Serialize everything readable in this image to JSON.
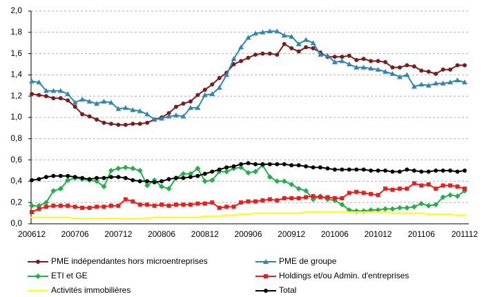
{
  "chart_data": {
    "type": "line",
    "categories": [
      "200612",
      null,
      null,
      null,
      null,
      null,
      "200706",
      null,
      null,
      null,
      null,
      null,
      "200712",
      null,
      null,
      null,
      null,
      null,
      "200806",
      null,
      null,
      null,
      null,
      null,
      "200812",
      null,
      null,
      null,
      null,
      null,
      "200906",
      null,
      null,
      null,
      null,
      null,
      "200912",
      null,
      null,
      null,
      null,
      null,
      "201006",
      null,
      null,
      null,
      null,
      null,
      "201012",
      null,
      null,
      null,
      null,
      null,
      "201106",
      null,
      null,
      null,
      null,
      null,
      "201112"
    ],
    "ylim": [
      0,
      2
    ],
    "yticks": [
      {
        "value": 0,
        "label": "0,0"
      },
      {
        "value": 0.2,
        "label": "0,2"
      },
      {
        "value": 0.4,
        "label": "0,4"
      },
      {
        "value": 0.6,
        "label": "0,6"
      },
      {
        "value": 0.8,
        "label": "0,8"
      },
      {
        "value": 1.0,
        "label": "1,0"
      },
      {
        "value": 1.2,
        "label": "1,2"
      },
      {
        "value": 1.4,
        "label": "1,4"
      },
      {
        "value": 1.6,
        "label": "1,6"
      },
      {
        "value": 1.8,
        "label": "1,8"
      },
      {
        "value": 2.0,
        "label": "2,0"
      }
    ],
    "grid": true,
    "legend": "bottom",
    "series": [
      {
        "name": "PME indépendantes hors microentreprises",
        "color": "#7b1c1c",
        "marker": "circle",
        "values": [
          1.22,
          1.21,
          1.2,
          1.18,
          1.18,
          1.16,
          1.1,
          1.03,
          1.01,
          0.98,
          0.95,
          0.94,
          0.93,
          0.93,
          0.94,
          0.94,
          0.95,
          0.98,
          1.0,
          1.04,
          1.1,
          1.13,
          1.15,
          1.21,
          1.26,
          1.31,
          1.37,
          1.42,
          1.5,
          1.53,
          1.56,
          1.59,
          1.6,
          1.6,
          1.59,
          1.69,
          1.65,
          1.62,
          1.66,
          1.65,
          1.61,
          1.57,
          1.57,
          1.57,
          1.58,
          1.54,
          1.55,
          1.53,
          1.53,
          1.52,
          1.47,
          1.47,
          1.49,
          1.48,
          1.44,
          1.43,
          1.41,
          1.45,
          1.45,
          1.49,
          1.49
        ]
      },
      {
        "name": "PME de groupe",
        "color": "#2f86b0",
        "marker": "triangle",
        "values": [
          1.34,
          1.33,
          1.25,
          1.25,
          1.25,
          1.22,
          1.14,
          1.17,
          1.15,
          1.13,
          1.15,
          1.14,
          1.08,
          1.09,
          1.07,
          1.06,
          1.03,
          0.98,
          0.99,
          1.01,
          1.02,
          1.01,
          1.09,
          1.09,
          1.21,
          1.22,
          1.28,
          1.4,
          1.55,
          1.66,
          1.75,
          1.79,
          1.8,
          1.81,
          1.81,
          1.77,
          1.76,
          1.69,
          1.73,
          1.7,
          1.59,
          1.58,
          1.52,
          1.53,
          1.5,
          1.47,
          1.47,
          1.46,
          1.45,
          1.43,
          1.41,
          1.38,
          1.4,
          1.29,
          1.31,
          1.3,
          1.32,
          1.32,
          1.33,
          1.35,
          1.33
        ]
      },
      {
        "name": "ETI et GE",
        "color": "#22b04b",
        "marker": "diamond",
        "values": [
          0.17,
          0.17,
          0.2,
          0.31,
          0.33,
          0.41,
          0.43,
          0.42,
          0.41,
          0.4,
          0.35,
          0.5,
          0.52,
          0.53,
          0.52,
          0.5,
          0.36,
          0.41,
          0.35,
          0.33,
          0.43,
          0.47,
          0.47,
          0.52,
          0.4,
          0.41,
          0.49,
          0.49,
          0.52,
          0.53,
          0.48,
          0.49,
          0.55,
          0.44,
          0.4,
          0.4,
          0.37,
          0.33,
          0.31,
          0.23,
          0.26,
          0.23,
          0.22,
          0.18,
          0.13,
          0.12,
          0.12,
          0.13,
          0.13,
          0.14,
          0.14,
          0.15,
          0.15,
          0.16,
          0.19,
          0.17,
          0.18,
          0.25,
          0.27,
          0.26,
          0.31
        ]
      },
      {
        "name": "Holdings et/ou Admin. d'entreprises",
        "color": "#ee1c1c",
        "marker": "square",
        "values": [
          0.11,
          0.14,
          0.16,
          0.17,
          0.17,
          0.17,
          0.16,
          0.15,
          0.15,
          0.16,
          0.16,
          0.17,
          0.17,
          0.23,
          0.21,
          0.18,
          0.18,
          0.17,
          0.18,
          0.17,
          0.18,
          0.18,
          0.18,
          0.19,
          0.19,
          0.2,
          0.15,
          0.16,
          0.16,
          0.2,
          0.21,
          0.21,
          0.22,
          0.23,
          0.22,
          0.24,
          0.24,
          0.24,
          0.25,
          0.26,
          0.25,
          0.25,
          0.24,
          0.24,
          0.29,
          0.3,
          0.29,
          0.28,
          0.27,
          0.33,
          0.32,
          0.33,
          0.33,
          0.38,
          0.36,
          0.37,
          0.33,
          0.36,
          0.36,
          0.35,
          0.33
        ]
      },
      {
        "name": "Activités immobilières",
        "color": "#ffff00",
        "marker": "dash",
        "values": [
          0.06,
          0.06,
          0.06,
          0.06,
          0.06,
          0.06,
          0.05,
          0.05,
          0.05,
          0.05,
          0.05,
          0.05,
          0.05,
          0.05,
          0.05,
          0.05,
          0.05,
          0.06,
          0.06,
          0.06,
          0.06,
          0.06,
          0.06,
          0.06,
          0.07,
          0.07,
          0.07,
          0.08,
          0.08,
          0.09,
          0.09,
          0.1,
          0.1,
          0.1,
          0.1,
          0.1,
          0.1,
          0.1,
          0.11,
          0.11,
          0.11,
          0.11,
          0.11,
          0.11,
          0.11,
          0.11,
          0.11,
          0.11,
          0.11,
          0.11,
          0.1,
          0.1,
          0.1,
          0.1,
          0.1,
          0.09,
          0.09,
          0.09,
          0.09,
          0.08,
          0.08
        ]
      },
      {
        "name": "Total",
        "color": "#000000",
        "marker": "circle",
        "values": [
          0.41,
          0.42,
          0.44,
          0.45,
          0.45,
          0.45,
          0.44,
          0.43,
          0.42,
          0.43,
          0.43,
          0.44,
          0.44,
          0.43,
          0.41,
          0.4,
          0.4,
          0.39,
          0.4,
          0.42,
          0.43,
          0.43,
          0.44,
          0.45,
          0.47,
          0.49,
          0.51,
          0.53,
          0.54,
          0.56,
          0.57,
          0.56,
          0.56,
          0.56,
          0.56,
          0.56,
          0.55,
          0.55,
          0.54,
          0.53,
          0.53,
          0.52,
          0.51,
          0.51,
          0.51,
          0.51,
          0.51,
          0.5,
          0.5,
          0.5,
          0.49,
          0.49,
          0.51,
          0.5,
          0.49,
          0.49,
          0.5,
          0.5,
          0.5,
          0.49,
          0.5
        ]
      }
    ]
  }
}
